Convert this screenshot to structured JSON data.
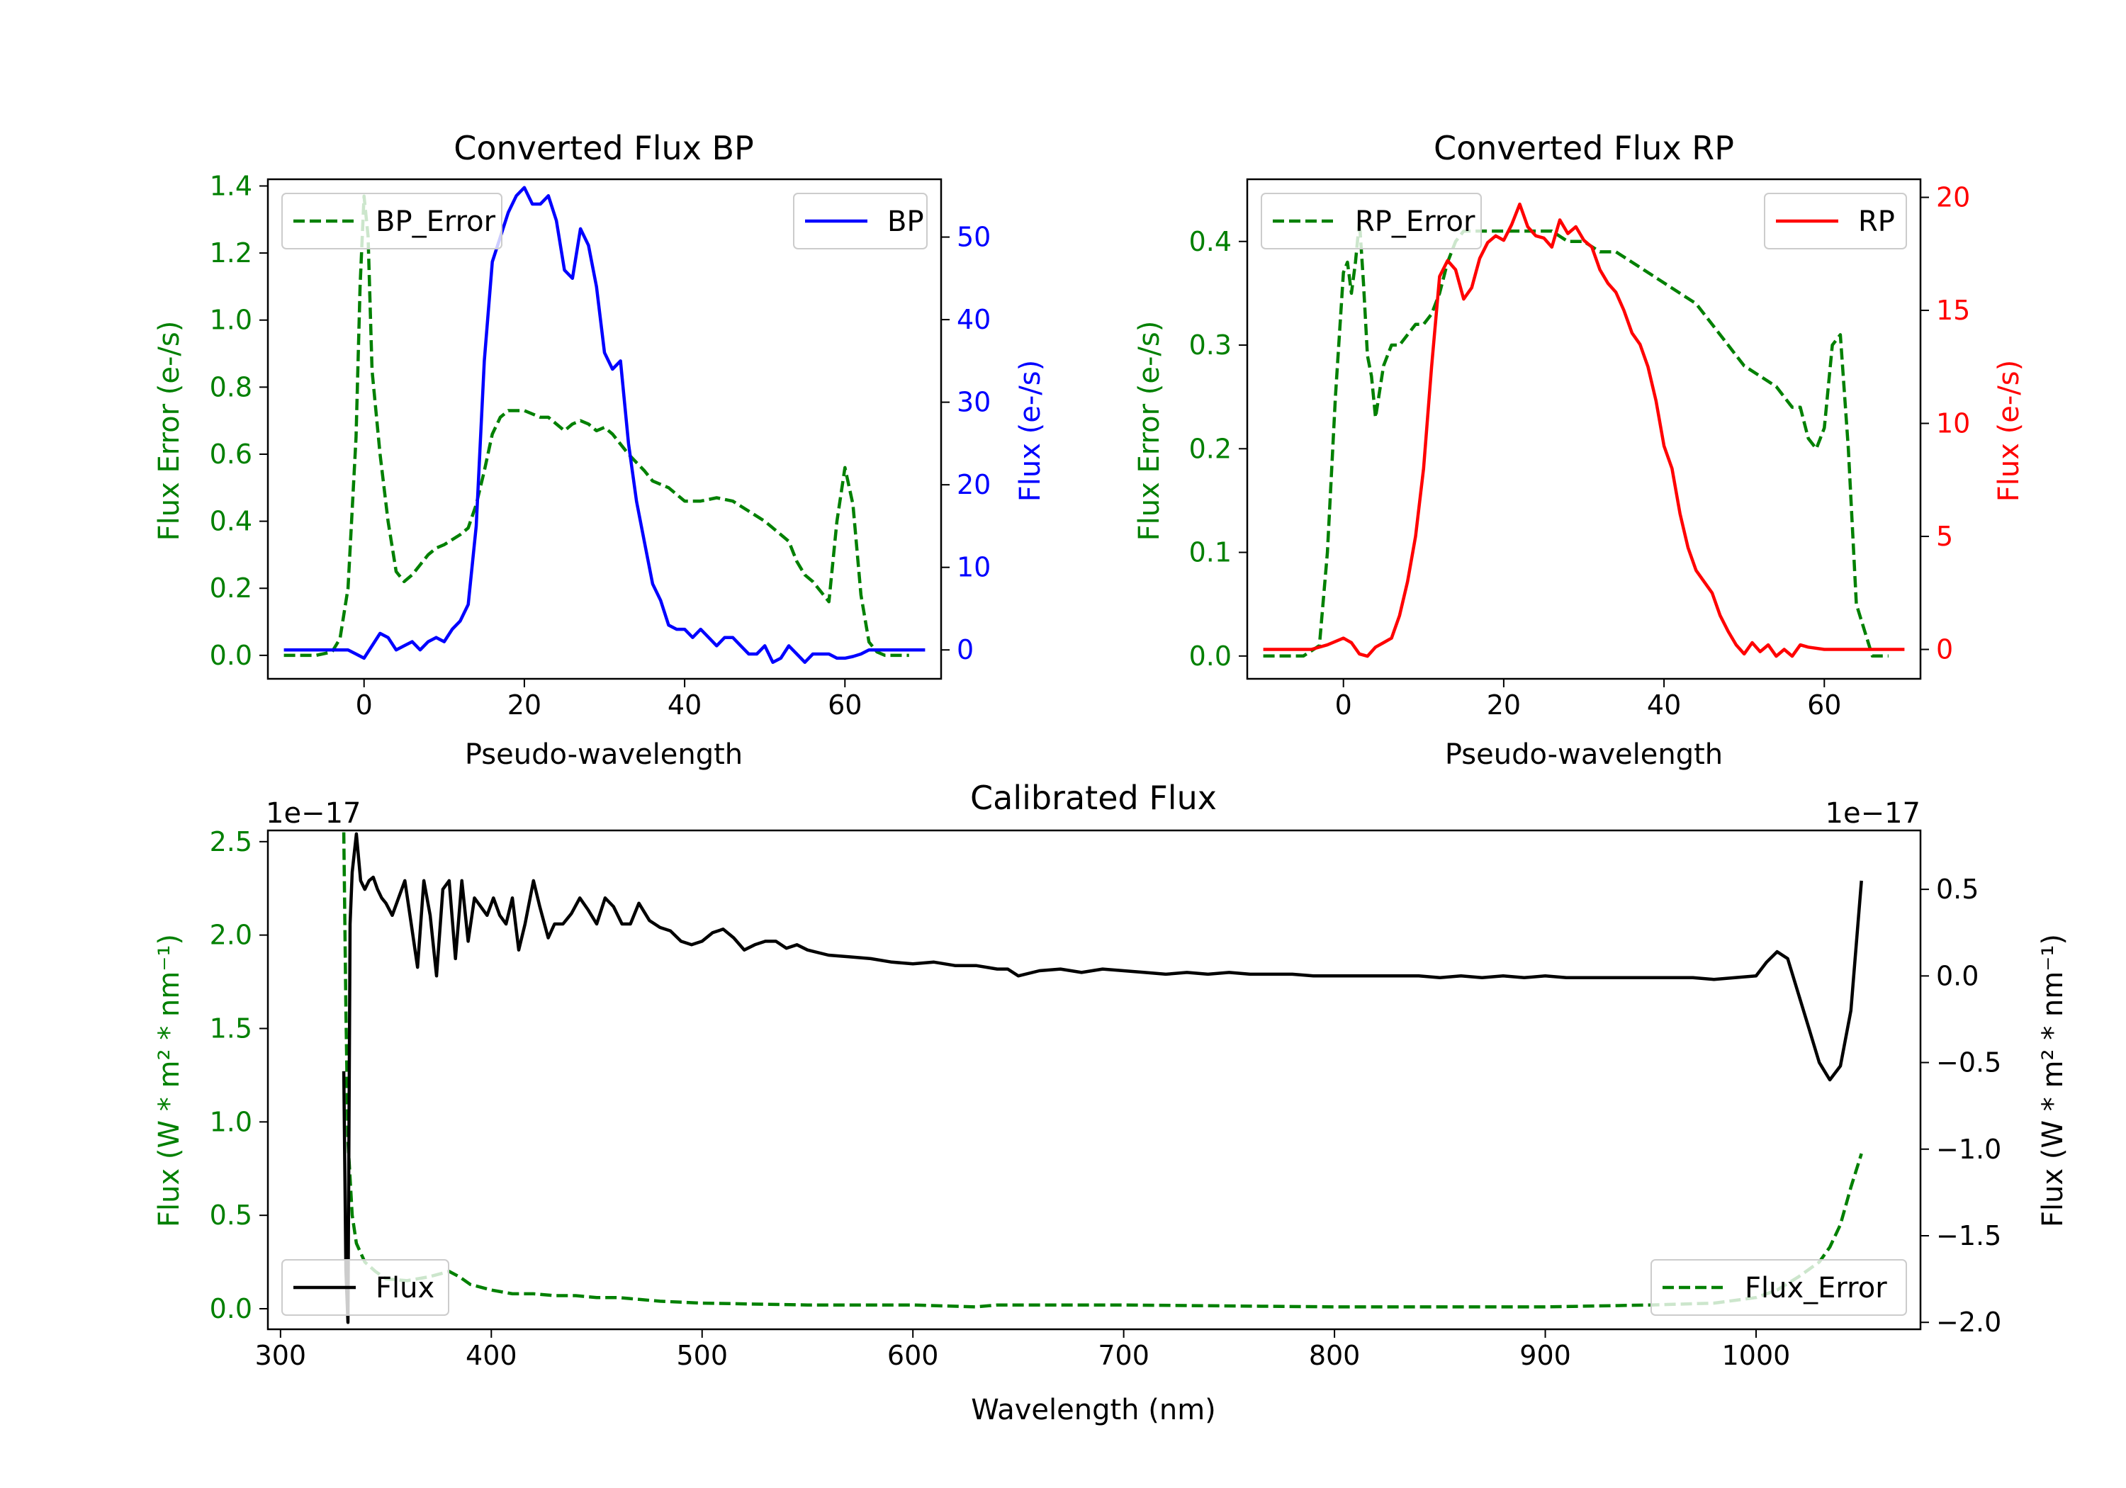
{
  "figure": {
    "background": "#ffffff"
  },
  "chart_data": [
    {
      "id": "bp",
      "type": "line",
      "title": "Converted Flux BP",
      "xlabel": "Pseudo-wavelength",
      "xlim": [
        -12,
        72
      ],
      "xticks": [
        0,
        20,
        40,
        60
      ],
      "xtick_labels": [
        "0",
        "20",
        "40",
        "60"
      ],
      "left_axis": {
        "label": "Flux Error (e-/s)",
        "color": "#008000",
        "ylim": [
          -0.07,
          1.42
        ],
        "ticks": [
          0.0,
          0.2,
          0.4,
          0.6,
          0.8,
          1.0,
          1.2,
          1.4
        ],
        "tick_labels": [
          "0.0",
          "0.2",
          "0.4",
          "0.6",
          "0.8",
          "1.0",
          "1.2",
          "1.4"
        ]
      },
      "right_axis": {
        "label": "Flux (e-/s)",
        "color": "#0000ff",
        "ylim": [
          -3.5,
          57
        ],
        "ticks": [
          0,
          10,
          20,
          30,
          40,
          50
        ],
        "tick_labels": [
          "0",
          "10",
          "20",
          "30",
          "40",
          "50"
        ]
      },
      "series": [
        {
          "name": "BP_Error",
          "axis": "left",
          "color": "#008000",
          "style": "dashed",
          "legend": "top-left",
          "x": [
            -10,
            -6,
            -4,
            -3,
            -2,
            -1,
            -0.5,
            0,
            0.5,
            1,
            2,
            3,
            4,
            5,
            6,
            7,
            8,
            9,
            10,
            12,
            13,
            14,
            15,
            16,
            17,
            18,
            19,
            20,
            21,
            22,
            23,
            24,
            25,
            26,
            27,
            28,
            29,
            30,
            31,
            32,
            33,
            35,
            36,
            38,
            40,
            42,
            44,
            46,
            48,
            50,
            52,
            53,
            54,
            55,
            56,
            57,
            58,
            59,
            60,
            61,
            62,
            63,
            64,
            65,
            66,
            67,
            68
          ],
          "values": [
            0.0,
            0.0,
            0.01,
            0.05,
            0.2,
            0.65,
            1.1,
            1.37,
            1.25,
            0.85,
            0.6,
            0.4,
            0.25,
            0.22,
            0.24,
            0.27,
            0.3,
            0.32,
            0.33,
            0.36,
            0.38,
            0.45,
            0.55,
            0.66,
            0.71,
            0.73,
            0.73,
            0.73,
            0.72,
            0.71,
            0.71,
            0.69,
            0.67,
            0.69,
            0.7,
            0.69,
            0.67,
            0.68,
            0.66,
            0.63,
            0.6,
            0.55,
            0.52,
            0.5,
            0.46,
            0.46,
            0.47,
            0.46,
            0.43,
            0.4,
            0.36,
            0.34,
            0.28,
            0.24,
            0.22,
            0.19,
            0.16,
            0.4,
            0.56,
            0.45,
            0.18,
            0.04,
            0.01,
            0.0,
            0.0,
            0.0,
            0.0
          ]
        },
        {
          "name": "BP",
          "axis": "right",
          "color": "#0000ff",
          "style": "solid",
          "legend": "top-right",
          "x": [
            -10,
            -6,
            -4,
            -2,
            -1,
            0,
            1,
            2,
            3,
            4,
            5,
            6,
            7,
            8,
            9,
            10,
            11,
            12,
            13,
            14,
            15,
            16,
            17,
            18,
            19,
            20,
            21,
            22,
            23,
            24,
            25,
            26,
            27,
            28,
            29,
            30,
            31,
            32,
            33,
            34,
            35,
            36,
            37,
            38,
            39,
            40,
            41,
            42,
            43,
            44,
            45,
            46,
            47,
            48,
            49,
            50,
            51,
            52,
            53,
            54,
            55,
            56,
            57,
            58,
            59,
            60,
            61,
            62,
            63,
            64,
            66,
            70
          ],
          "values": [
            0,
            0,
            0,
            0,
            -0.5,
            -1,
            0.5,
            2,
            1.5,
            0,
            0.5,
            1,
            0,
            1,
            1.5,
            1,
            2.5,
            3.5,
            5.5,
            15,
            35,
            47,
            50,
            53,
            55,
            56,
            54,
            54,
            55,
            52,
            46,
            45,
            51,
            49,
            44,
            36,
            34,
            35,
            25,
            18,
            13,
            8,
            6,
            3,
            2.5,
            2.5,
            1.5,
            2.5,
            1.5,
            0.5,
            1.5,
            1.5,
            0.5,
            -0.5,
            -0.5,
            0.5,
            -1.5,
            -1,
            0.5,
            -0.5,
            -1.5,
            -0.5,
            -0.5,
            -0.5,
            -1,
            -1,
            -0.8,
            -0.5,
            0,
            0,
            0,
            0
          ]
        }
      ]
    },
    {
      "id": "rp",
      "type": "line",
      "title": "Converted Flux RP",
      "xlabel": "Pseudo-wavelength",
      "xlim": [
        -12,
        72
      ],
      "xticks": [
        0,
        20,
        40,
        60
      ],
      "xtick_labels": [
        "0",
        "20",
        "40",
        "60"
      ],
      "left_axis": {
        "label": "Flux Error (e-/s)",
        "color": "#008000",
        "ylim": [
          -0.022,
          0.46
        ],
        "ticks": [
          0.0,
          0.1,
          0.2,
          0.3,
          0.4
        ],
        "tick_labels": [
          "0.0",
          "0.1",
          "0.2",
          "0.3",
          "0.4"
        ]
      },
      "right_axis": {
        "label": "Flux (e-/s)",
        "color": "#ff0000",
        "ylim": [
          -1.3,
          20.8
        ],
        "ticks": [
          0,
          5,
          10,
          15,
          20
        ],
        "tick_labels": [
          "0",
          "5",
          "10",
          "15",
          "20"
        ]
      },
      "series": [
        {
          "name": "RP_Error",
          "axis": "left",
          "color": "#008000",
          "style": "dashed",
          "legend": "top-left",
          "x": [
            -10,
            -5,
            -3,
            -2,
            -1,
            0,
            0.5,
            1,
            1.5,
            2,
            2.5,
            3,
            3.5,
            4,
            5,
            6,
            7,
            8,
            9,
            10,
            11,
            12,
            13,
            14,
            15,
            16,
            18,
            20,
            22,
            24,
            26,
            28,
            30,
            32,
            34,
            36,
            38,
            40,
            42,
            44,
            46,
            48,
            50,
            52,
            54,
            55,
            56,
            57,
            58,
            59,
            60,
            61,
            62,
            63,
            64,
            66,
            68
          ],
          "values": [
            0.0,
            0.0,
            0.01,
            0.1,
            0.25,
            0.37,
            0.38,
            0.35,
            0.38,
            0.42,
            0.36,
            0.29,
            0.27,
            0.23,
            0.28,
            0.3,
            0.3,
            0.31,
            0.32,
            0.32,
            0.33,
            0.35,
            0.38,
            0.4,
            0.41,
            0.41,
            0.41,
            0.41,
            0.41,
            0.41,
            0.41,
            0.4,
            0.4,
            0.39,
            0.39,
            0.38,
            0.37,
            0.36,
            0.35,
            0.34,
            0.32,
            0.3,
            0.28,
            0.27,
            0.26,
            0.25,
            0.24,
            0.24,
            0.21,
            0.2,
            0.22,
            0.3,
            0.31,
            0.2,
            0.05,
            0.0,
            0.0
          ]
        },
        {
          "name": "RP",
          "axis": "right",
          "color": "#ff0000",
          "style": "solid",
          "legend": "top-right",
          "x": [
            -10,
            -4,
            -2,
            0,
            1,
            2,
            3,
            4,
            5,
            6,
            7,
            8,
            9,
            10,
            11,
            12,
            13,
            14,
            15,
            16,
            17,
            18,
            19,
            20,
            21,
            22,
            23,
            24,
            25,
            26,
            27,
            28,
            29,
            30,
            31,
            32,
            33,
            34,
            35,
            36,
            37,
            38,
            39,
            40,
            41,
            42,
            43,
            44,
            45,
            46,
            47,
            48,
            49,
            50,
            51,
            52,
            53,
            54,
            55,
            56,
            57,
            58,
            60,
            62,
            64,
            70
          ],
          "values": [
            0,
            0,
            0.2,
            0.5,
            0.3,
            -0.2,
            -0.3,
            0.1,
            0.3,
            0.5,
            1.5,
            3,
            5,
            8,
            12.5,
            16.5,
            17.2,
            16.8,
            15.5,
            16,
            17.3,
            18,
            18.3,
            18.1,
            18.8,
            19.7,
            18.7,
            18.3,
            18.2,
            17.8,
            19,
            18.4,
            18.7,
            18.1,
            17.8,
            16.8,
            16.2,
            15.8,
            15,
            14,
            13.5,
            12.5,
            11,
            9,
            8,
            6,
            4.5,
            3.5,
            3,
            2.5,
            1.5,
            0.8,
            0.2,
            -0.2,
            0.3,
            -0.1,
            0.2,
            -0.3,
            0,
            -0.3,
            0.2,
            0.1,
            0,
            0,
            0,
            0
          ]
        }
      ]
    },
    {
      "id": "cal",
      "type": "line",
      "title": "Calibrated Flux",
      "xlabel": "Wavelength (nm)",
      "xlim": [
        294,
        1078
      ],
      "xticks": [
        300,
        400,
        500,
        600,
        700,
        800,
        900,
        1000
      ],
      "xtick_labels": [
        "300",
        "400",
        "500",
        "600",
        "700",
        "800",
        "900",
        "1000"
      ],
      "left_axis": {
        "label": "Flux (W * m² * nm⁻¹)",
        "color": "#008000",
        "ylim": [
          -0.11,
          2.56
        ],
        "offset_text": "1e−17",
        "ticks": [
          0.0,
          0.5,
          1.0,
          1.5,
          2.0,
          2.5
        ],
        "tick_labels": [
          "0.0",
          "0.5",
          "1.0",
          "1.5",
          "2.0",
          "2.5"
        ]
      },
      "right_axis": {
        "label": "Flux (W * m² * nm⁻¹)",
        "color": "#000000",
        "ylim": [
          -2.04,
          0.84
        ],
        "offset_text": "1e−17",
        "ticks": [
          -2.0,
          -1.5,
          -1.0,
          -0.5,
          0.0,
          0.5
        ],
        "tick_labels": [
          "−2.0",
          "−1.5",
          "−1.0",
          "−0.5",
          "0.0",
          "0.5"
        ]
      },
      "series": [
        {
          "name": "Flux_Error",
          "axis": "left",
          "color": "#008000",
          "style": "dashed",
          "legend": "bottom-right",
          "x": [
            330,
            331,
            332,
            334,
            336,
            340,
            345,
            350,
            360,
            370,
            380,
            385,
            390,
            400,
            410,
            420,
            430,
            440,
            450,
            460,
            480,
            500,
            550,
            600,
            630,
            640,
            700,
            800,
            900,
            950,
            980,
            1000,
            1010,
            1020,
            1030,
            1035,
            1040,
            1045,
            1050
          ],
          "values": [
            2.55,
            1.6,
            0.9,
            0.5,
            0.35,
            0.25,
            0.2,
            0.16,
            0.15,
            0.17,
            0.2,
            0.17,
            0.13,
            0.1,
            0.08,
            0.08,
            0.07,
            0.07,
            0.06,
            0.06,
            0.04,
            0.03,
            0.02,
            0.02,
            0.01,
            0.02,
            0.02,
            0.01,
            0.01,
            0.02,
            0.03,
            0.06,
            0.1,
            0.17,
            0.25,
            0.33,
            0.45,
            0.65,
            0.83
          ]
        },
        {
          "name": "Flux",
          "axis": "right",
          "color": "#000000",
          "style": "solid",
          "legend": "bottom-left",
          "x": [
            330,
            331,
            332,
            333,
            334,
            336,
            338,
            340,
            342,
            344,
            346,
            348,
            350,
            353,
            356,
            359,
            362,
            365,
            368,
            371,
            374,
            377,
            380,
            383,
            386,
            389,
            392,
            395,
            398,
            401,
            404,
            407,
            410,
            413,
            416,
            420,
            423,
            427,
            430,
            434,
            438,
            442,
            446,
            450,
            454,
            458,
            462,
            466,
            470,
            475,
            480,
            485,
            490,
            495,
            500,
            505,
            510,
            515,
            520,
            525,
            530,
            535,
            540,
            545,
            550,
            560,
            570,
            580,
            590,
            600,
            610,
            620,
            630,
            640,
            645,
            650,
            660,
            670,
            680,
            690,
            700,
            710,
            720,
            730,
            740,
            750,
            760,
            770,
            780,
            790,
            800,
            810,
            820,
            830,
            840,
            850,
            860,
            870,
            880,
            890,
            900,
            910,
            920,
            930,
            940,
            950,
            960,
            970,
            980,
            990,
            1000,
            1005,
            1010,
            1015,
            1020,
            1025,
            1030,
            1035,
            1040,
            1045,
            1050
          ],
          "values": [
            -0.55,
            -1.7,
            -2.0,
            0.3,
            0.6,
            0.82,
            0.55,
            0.5,
            0.55,
            0.57,
            0.5,
            0.45,
            0.42,
            0.35,
            0.45,
            0.55,
            0.3,
            0.05,
            0.55,
            0.35,
            0.0,
            0.5,
            0.55,
            0.1,
            0.55,
            0.2,
            0.45,
            0.4,
            0.35,
            0.45,
            0.35,
            0.3,
            0.45,
            0.15,
            0.3,
            0.55,
            0.4,
            0.22,
            0.3,
            0.3,
            0.36,
            0.45,
            0.38,
            0.3,
            0.45,
            0.4,
            0.3,
            0.3,
            0.42,
            0.32,
            0.28,
            0.26,
            0.2,
            0.18,
            0.2,
            0.25,
            0.27,
            0.22,
            0.15,
            0.18,
            0.2,
            0.2,
            0.16,
            0.18,
            0.15,
            0.12,
            0.11,
            0.1,
            0.08,
            0.07,
            0.08,
            0.06,
            0.06,
            0.04,
            0.04,
            0.0,
            0.03,
            0.04,
            0.02,
            0.04,
            0.03,
            0.02,
            0.01,
            0.02,
            0.01,
            0.02,
            0.01,
            0.01,
            0.01,
            0.0,
            0.0,
            0.0,
            0.0,
            0.0,
            0.0,
            -0.01,
            0.0,
            -0.01,
            0.0,
            -0.01,
            0.0,
            -0.01,
            -0.01,
            -0.01,
            -0.01,
            -0.01,
            -0.01,
            -0.01,
            -0.02,
            -0.01,
            0.0,
            0.08,
            0.14,
            0.1,
            -0.1,
            -0.3,
            -0.5,
            -0.6,
            -0.52,
            -0.2,
            0.55
          ]
        }
      ]
    }
  ]
}
